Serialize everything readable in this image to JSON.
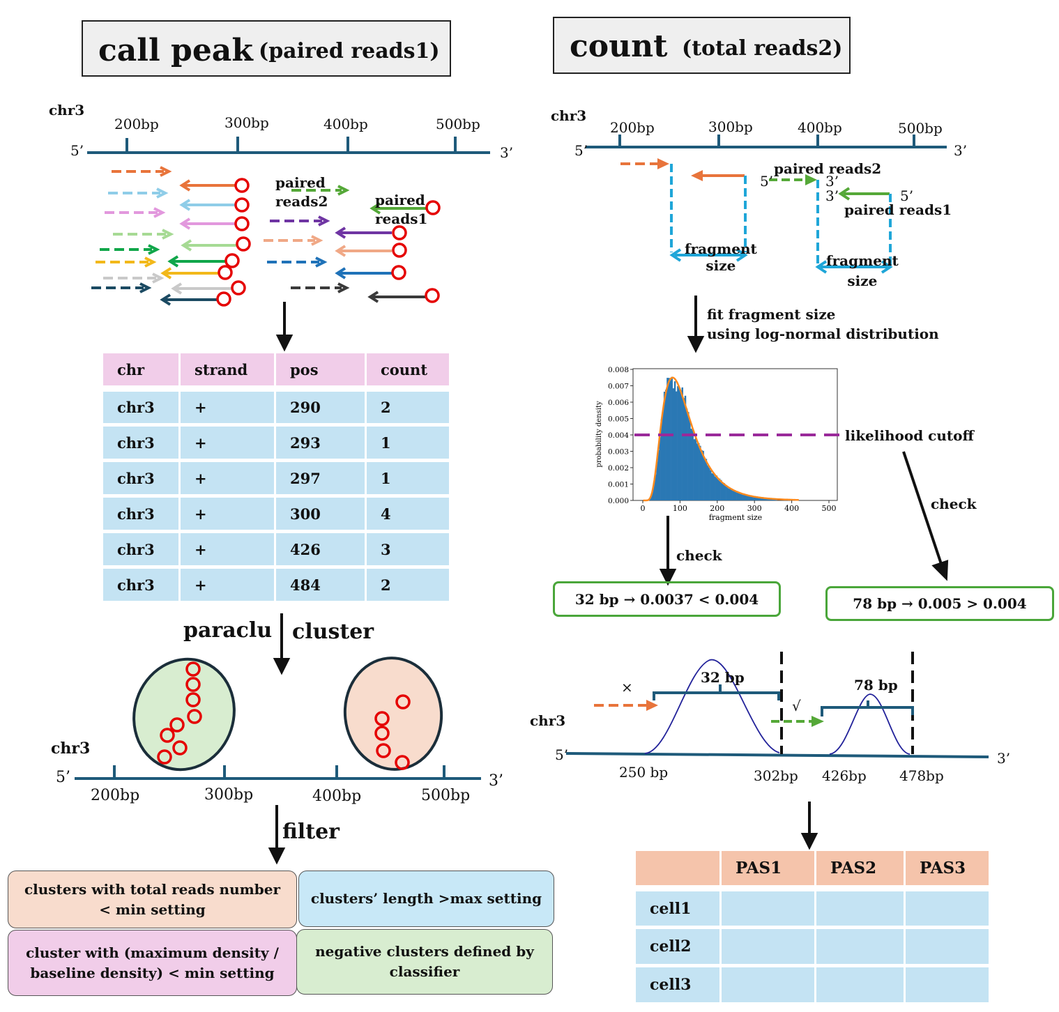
{
  "left": {
    "title_main": "call peak",
    "title_sub": "(paired reads1)",
    "axis_top": {
      "chrom": "chr3",
      "ticks": [
        "200bp",
        "300bp",
        "400bp",
        "500bp"
      ],
      "end5": "5’",
      "end3": "3’"
    },
    "reads_label": {
      "paired_reads2": "paired\nreads2",
      "paired_reads1": "paired\nreads1"
    },
    "table": {
      "headers": [
        "chr",
        "strand",
        "pos",
        "count"
      ],
      "rows": [
        [
          "chr3",
          "+",
          "290",
          "2"
        ],
        [
          "chr3",
          "+",
          "293",
          "1"
        ],
        [
          "chr3",
          "+",
          "297",
          "1"
        ],
        [
          "chr3",
          "+",
          "300",
          "4"
        ],
        [
          "chr3",
          "+",
          "426",
          "3"
        ],
        [
          "chr3",
          "+",
          "484",
          "2"
        ]
      ]
    },
    "cluster_step": {
      "paraclu": "paraclu",
      "cluster": "cluster"
    },
    "axis_bottom": {
      "chrom": "chr3",
      "ticks": [
        "200bp",
        "300bp",
        "400bp",
        "500bp"
      ],
      "end5": "5’",
      "end3": "3’"
    },
    "filter_label": "filter",
    "filters": [
      "clusters with total reads number < min setting",
      "clusters’ length >max setting",
      "cluster with (maximum density / baseline density) < min setting",
      "negative clusters defined by classifier"
    ]
  },
  "right": {
    "title_main": "count",
    "title_sub": "(total reads2)",
    "axis_top": {
      "chrom": "chr3",
      "ticks": [
        "200bp",
        "300bp",
        "400bp",
        "500bp"
      ],
      "end5": "5’",
      "end3": "3’"
    },
    "pair_labels": {
      "paired_reads2": "paired reads2",
      "paired_reads1": "paired reads1",
      "p2_5": "5’",
      "p2_3": "3’",
      "p1_3": "3’",
      "p1_5": "5’",
      "fragment_size": "fragment\nsize"
    },
    "fit_text": [
      "fit fragment size",
      "using log-normal distribution"
    ],
    "likelihood_cutoff": "likelihood cutoff",
    "check_label": "check",
    "check_boxes": [
      "32 bp → 0.0037 < 0.004",
      "78 bp → 0.005 > 0.004"
    ],
    "bottom_axis": {
      "chrom": "chr3",
      "end5": "5’",
      "end3": "3’",
      "positions": [
        "250 bp",
        "302bp",
        "426bp",
        "478bp"
      ],
      "peak_labels": [
        "32 bp",
        "78 bp"
      ],
      "marks": [
        "×",
        "√"
      ]
    },
    "count_table": {
      "headers": [
        "",
        "PAS1",
        "PAS2",
        "PAS3"
      ],
      "rows": [
        "cell1",
        "cell2",
        "cell3"
      ]
    }
  },
  "chart_data": {
    "type": "bar",
    "xlabel": "fragment size",
    "ylabel": "probability density",
    "xlim": [
      0,
      500
    ],
    "ylim": [
      0,
      0.008
    ],
    "xticks": [
      "0",
      "100",
      "200",
      "300",
      "400",
      "500"
    ],
    "yticks": [
      "0.000",
      "0.001",
      "0.002",
      "0.003",
      "0.004",
      "0.005",
      "0.006",
      "0.007",
      "0.008"
    ],
    "cutoff": 0.004,
    "fit_curve": "log-normal",
    "lognormal_fit": {
      "mode": 80,
      "peak_density": 0.0075
    },
    "colors": {
      "bars": "#2a78b4",
      "fit": "#ff8a1e",
      "cutoff": "#9a2a9a"
    }
  }
}
